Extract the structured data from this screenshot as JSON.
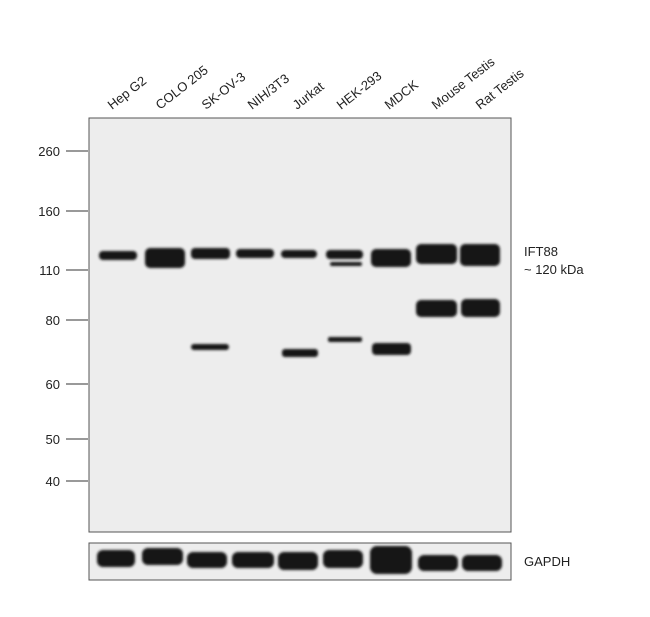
{
  "lanes": [
    "Hep G2",
    "COLO 205",
    "SK-OV-3",
    "NIH/3T3",
    "Jurkat",
    "HEK-293",
    "MDCK",
    "Mouse Testis",
    "Rat Testis"
  ],
  "markers": [
    260,
    160,
    110,
    80,
    60,
    50,
    40
  ],
  "target": {
    "name": "IFT88",
    "size": "~ 120 kDa"
  },
  "loading_control": "GAPDH"
}
